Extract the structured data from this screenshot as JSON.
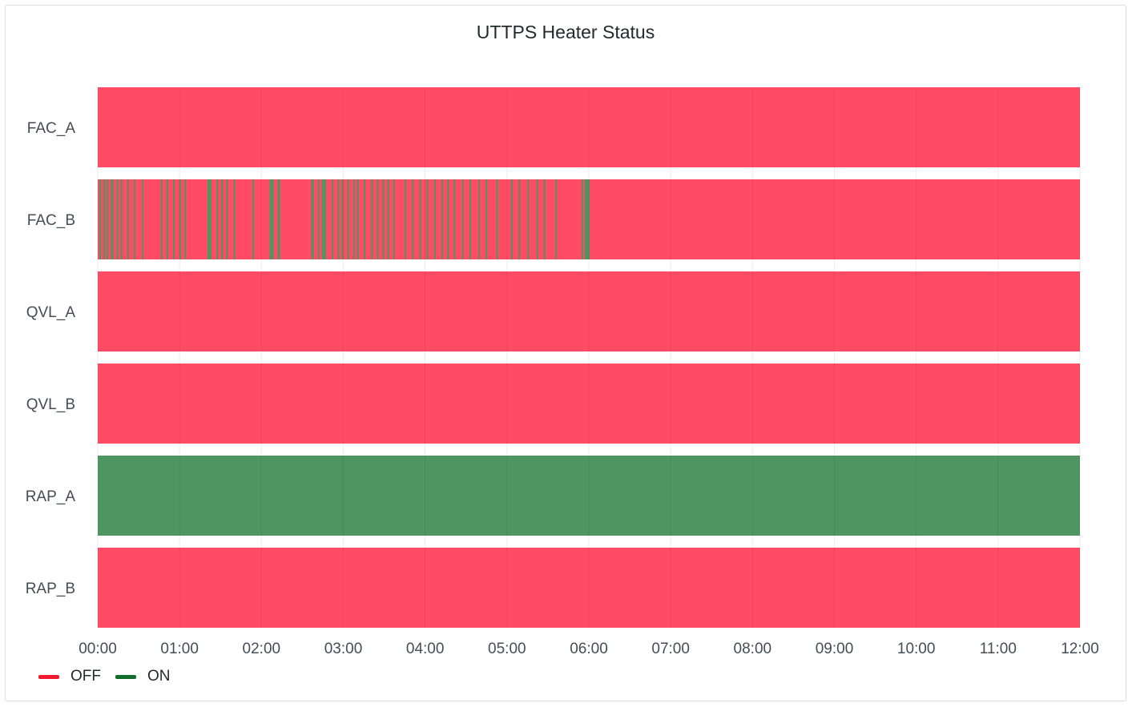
{
  "panel": {
    "title": "UTTPS Heater Status"
  },
  "chart_data": {
    "type": "state-timeline",
    "title": "UTTPS Heater Status",
    "x_range": [
      "00:00",
      "12:00"
    ],
    "x_ticks": [
      "00:00",
      "01:00",
      "02:00",
      "03:00",
      "04:00",
      "05:00",
      "06:00",
      "07:00",
      "08:00",
      "09:00",
      "10:00",
      "11:00",
      "12:00"
    ],
    "grid": true,
    "legend_placement": "bottom-left",
    "states": [
      {
        "name": "OFF",
        "color": "#ff4b63",
        "legend_color": "#f2182e"
      },
      {
        "name": "ON",
        "color": "#4f9562",
        "legend_color": "#136d2a"
      }
    ],
    "rows": [
      {
        "name": "FAC_A",
        "on_intervals": []
      },
      {
        "name": "FAC_B",
        "on_intervals": [
          [
            0.02,
            0.04
          ],
          [
            0.07,
            0.09
          ],
          [
            0.11,
            0.12
          ],
          [
            0.16,
            0.19
          ],
          [
            0.23,
            0.25
          ],
          [
            0.28,
            0.29
          ],
          [
            0.36,
            0.37
          ],
          [
            0.44,
            0.45
          ],
          [
            0.54,
            0.56
          ],
          [
            0.77,
            0.79
          ],
          [
            0.84,
            0.85
          ],
          [
            0.92,
            0.93
          ],
          [
            1.0,
            1.01
          ],
          [
            1.06,
            1.07
          ],
          [
            1.34,
            1.39
          ],
          [
            1.45,
            1.46
          ],
          [
            1.51,
            1.53
          ],
          [
            1.57,
            1.58
          ],
          [
            1.66,
            1.67
          ],
          [
            1.89,
            1.9
          ],
          [
            2.1,
            2.15
          ],
          [
            2.2,
            2.23
          ],
          [
            2.61,
            2.64
          ],
          [
            2.69,
            2.7
          ],
          [
            2.74,
            2.79
          ],
          [
            2.86,
            2.87
          ],
          [
            2.93,
            2.94
          ],
          [
            2.98,
            3.0
          ],
          [
            3.05,
            3.06
          ],
          [
            3.12,
            3.14
          ],
          [
            3.17,
            3.19
          ],
          [
            3.25,
            3.26
          ],
          [
            3.34,
            3.36
          ],
          [
            3.41,
            3.42
          ],
          [
            3.48,
            3.5
          ],
          [
            3.54,
            3.56
          ],
          [
            3.61,
            3.62
          ],
          [
            3.75,
            3.77
          ],
          [
            3.84,
            3.86
          ],
          [
            3.93,
            3.95
          ],
          [
            4.02,
            4.04
          ],
          [
            4.11,
            4.13
          ],
          [
            4.2,
            4.21
          ],
          [
            4.27,
            4.29
          ],
          [
            4.35,
            4.37
          ],
          [
            4.45,
            4.46
          ],
          [
            4.54,
            4.56
          ],
          [
            4.65,
            4.66
          ],
          [
            4.74,
            4.76
          ],
          [
            4.87,
            4.88
          ],
          [
            5.05,
            5.06
          ],
          [
            5.14,
            5.16
          ],
          [
            5.25,
            5.27
          ],
          [
            5.36,
            5.38
          ],
          [
            5.45,
            5.47
          ],
          [
            5.59,
            5.6
          ],
          [
            5.91,
            5.92
          ],
          [
            5.95,
            6.01
          ]
        ]
      },
      {
        "name": "QVL_A",
        "on_intervals": []
      },
      {
        "name": "QVL_B",
        "on_intervals": []
      },
      {
        "name": "RAP_A",
        "on_intervals": [
          [
            0.0,
            12.0
          ]
        ]
      },
      {
        "name": "RAP_B",
        "on_intervals": []
      }
    ]
  }
}
